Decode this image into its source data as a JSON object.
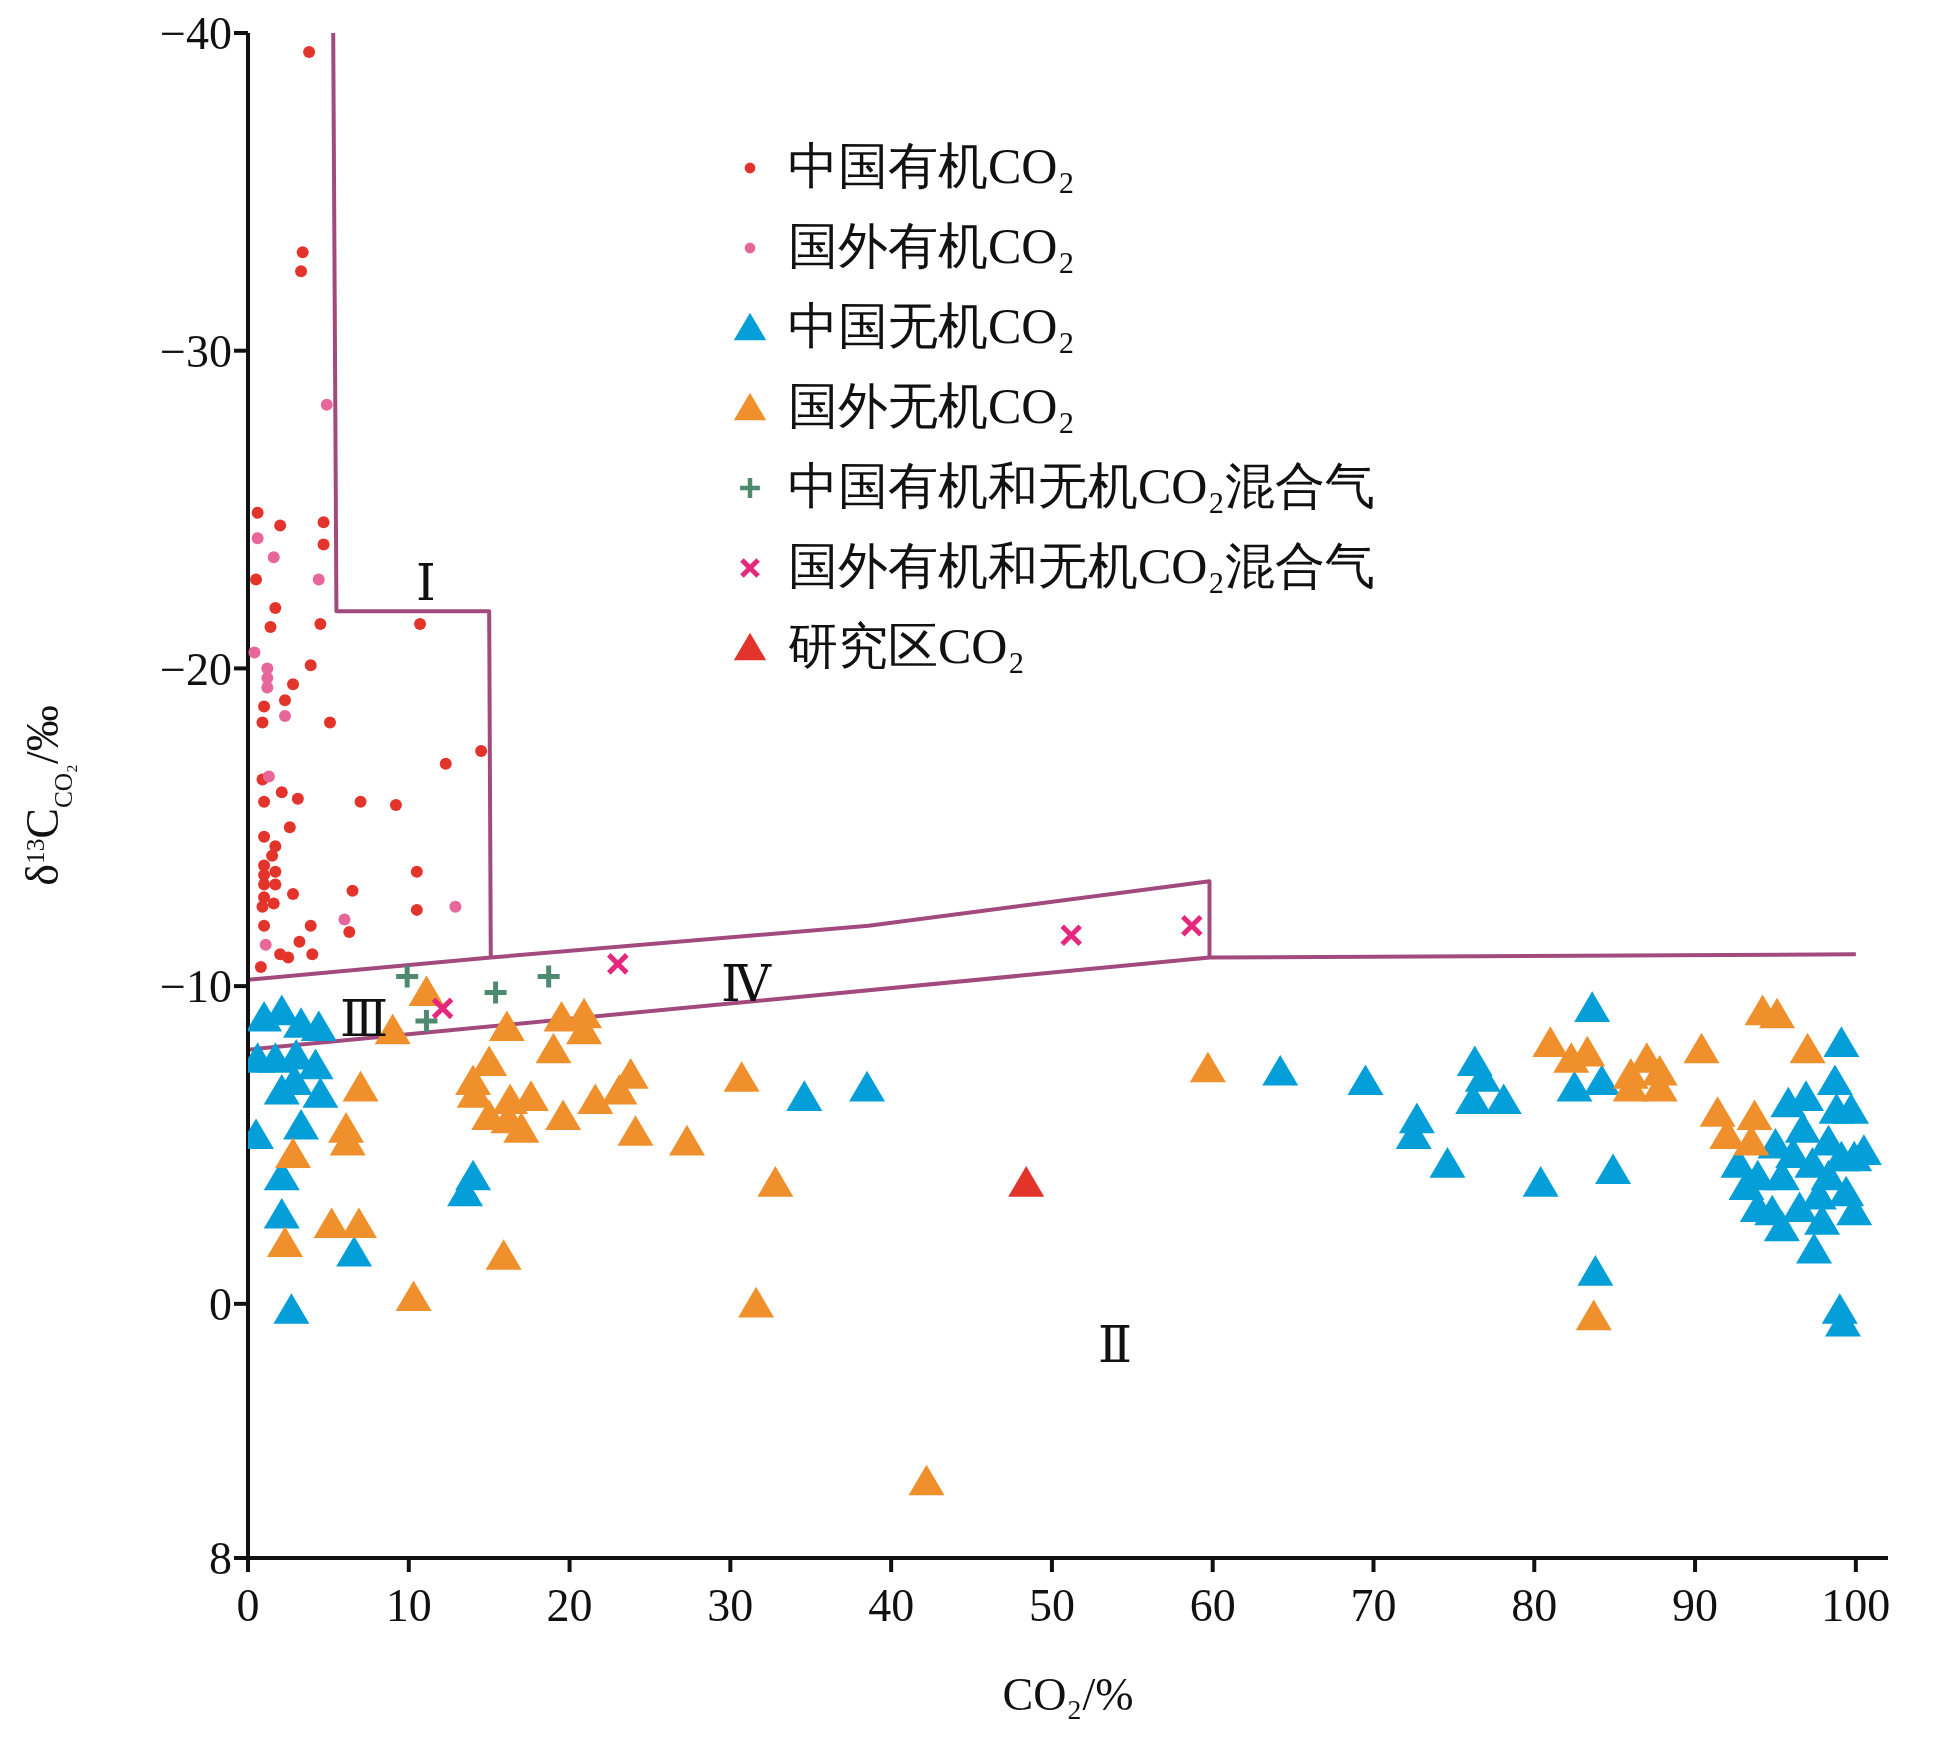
{
  "chart_data": {
    "type": "scatter",
    "xlabel": "CO₂/%",
    "ylabel": "δ$^{13}$C$_{CO₂}$/‰",
    "xlim": [
      0,
      102
    ],
    "xticks": [
      0,
      10,
      20,
      30,
      40,
      50,
      60,
      70,
      80,
      90,
      100
    ],
    "ylim": [
      8,
      -40
    ],
    "yticks": [
      -40,
      -30,
      -20,
      -10,
      0,
      8
    ],
    "grid": false,
    "legend": "top",
    "series": [
      {
        "name": "中国有机CO₂",
        "color": "#e3342c",
        "marker": "circle",
        "x": [
          3.8,
          3.4,
          3.3,
          0.6,
          2,
          4.7,
          4.7,
          0.5,
          1.7,
          1.4,
          4.5,
          10.7,
          3.9,
          2.8,
          2.3,
          1.1,
          1,
          0.9,
          5.1,
          14.5,
          12.3,
          0.9,
          2.1,
          3.1,
          1,
          7,
          9.2,
          2.6,
          1,
          1.7,
          1.5,
          1,
          1.7,
          10.5,
          1,
          1,
          1.7,
          1,
          2.8,
          6.5,
          10.5,
          1.6,
          0.9,
          3.9,
          6.3,
          1,
          3.2,
          4,
          2.5,
          0.8,
          2
        ],
        "values": [
          -39.4,
          -33.1,
          -32.5,
          -24.9,
          -24.5,
          -24.6,
          -23.9,
          -22.8,
          -21.9,
          -21.3,
          -21.4,
          -21.4,
          -20.1,
          -19.5,
          -19,
          null,
          -18.8,
          -18.3,
          -18.3,
          -17.4,
          -17,
          -16.5,
          -16.1,
          -15.9,
          -15.8,
          -15.8,
          -15.7,
          -15,
          -14.7,
          -14.4,
          -14.1,
          -13.8,
          -13.6,
          -13.6,
          -13.5,
          -13.2,
          -13.2,
          -12.8,
          -12.9,
          -13,
          -12.4,
          -12.6,
          -12.5,
          -11.9,
          -11.7,
          -11.9,
          -11.4,
          -11,
          -10.9,
          -10.6,
          -11
        ]
      },
      {
        "name": "国外有机CO₂",
        "color": "#e8679a",
        "marker": "circle",
        "x": [
          4.9,
          0.6,
          1.6,
          4.4,
          0.4,
          1.2,
          1.2,
          1.2,
          2.3,
          1.3,
          6,
          12.9,
          1.1
        ],
        "values": [
          -28.3,
          -24.1,
          -23.5,
          -22.8,
          -20.5,
          -20,
          -19.7,
          -19.4,
          -18.5,
          -16.6,
          -12.1,
          -12.5,
          -11.3
        ]
      },
      {
        "name": "中国无机CO₂",
        "color": "#049fd9",
        "marker": "triangle",
        "x": [
          1,
          2.1,
          3.3,
          4.4,
          0.6,
          1.7,
          3,
          4.2,
          2.9,
          2.1,
          4.5,
          3.3,
          0.5,
          2.1,
          2.1,
          14,
          13.5,
          6.6,
          2.7,
          34.6,
          38.5,
          64.2,
          69.5,
          72.7,
          72.5,
          74.6,
          76.3,
          76.8,
          76.2,
          78.1,
          80.4,
          83.6,
          82.5,
          84.2,
          84.9,
          83.8,
          99.1,
          98.7,
          92.7,
          93.9,
          94.8,
          95.4,
          96.1,
          95.8,
          96.7,
          97.3,
          97.7,
          97.4,
          98.3,
          98.8,
          99.1,
          99.4,
          99.7,
          99.9,
          99.9,
          100.5,
          99,
          99.2,
          96.5,
          95.4,
          93.9,
          97.9,
          98.3,
          96.9,
          95,
          93.2
        ],
        "values": [
          -9,
          -9.2,
          -8.8,
          -8.7,
          -7.7,
          -7.7,
          -7.8,
          -7.5,
          -7,
          -6.7,
          -6.6,
          -5.6,
          -5.3,
          -4,
          -2.8,
          -4,
          -3.5,
          -1.6,
          0.2,
          -6.5,
          -6.8,
          -7.3,
          -7,
          -5.8,
          -5.3,
          -4.4,
          -7.6,
          -7.1,
          -6.4,
          -6.4,
          -3.8,
          -9.3,
          -6.8,
          -7,
          -4.2,
          -1,
          -8.2,
          -7,
          -4.4,
          -4,
          -2.9,
          -4,
          -4.7,
          -6.3,
          -5.5,
          -4.4,
          -3.4,
          -1.7,
          -5.1,
          -6.1,
          -4.6,
          -3.5,
          -6.1,
          -4.6,
          -2.9,
          -4.8,
          0.2,
          0.6,
          -3,
          -2.4,
          -3,
          -2.6,
          -4,
          -6.5,
          -5,
          -3.7
        ]
      },
      {
        "name": "国外无机CO₂",
        "color": "#f0902c",
        "marker": "triangle",
        "x": [
          9,
          11.1,
          7,
          6.1,
          6.2,
          2.8,
          2.3,
          5.2,
          6.9,
          10.3,
          14,
          14.1,
          15,
          16.1,
          15,
          16.2,
          17,
          17.6,
          16.3,
          19,
          19.5,
          20.9,
          20.9,
          19.6,
          21.6,
          23.1,
          23.8,
          24.1,
          27.3,
          30.7,
          32.8,
          15.9,
          31.6,
          42.2,
          59.7,
          81,
          82.3,
          83.3,
          86,
          86,
          87,
          87.8,
          87.8,
          90.4,
          91.4,
          92,
          93.7,
          93.5,
          94.2,
          95.1,
          97,
          83.7
        ],
        "values": [
          -8.6,
          -9.8,
          -6.8,
          -5.5,
          -5.1,
          -4.7,
          -1.9,
          -2.5,
          -2.5,
          -0.2,
          -7,
          -6.6,
          -7.6,
          -8.7,
          -5.9,
          -5.8,
          -5.5,
          -6.5,
          -6.4,
          -8,
          -9,
          -9.1,
          -8.6,
          -5.9,
          -6.4,
          -6.7,
          -7.2,
          -5.4,
          -5.1,
          -7.1,
          -3.8,
          -1.5,
          0,
          5.6,
          -7.4,
          -8.2,
          -7.7,
          -7.9,
          -7.2,
          -6.8,
          -7.7,
          -7.3,
          -6.8,
          -8,
          -6,
          -5.3,
          -5.9,
          -5.1,
          -9.2,
          -9.1,
          -8,
          0.4
        ]
      },
      {
        "name": "中国有机和无机CO₂混合气",
        "color": "#4e8a6f",
        "marker": "cross",
        "x": [
          9.9,
          11.1,
          15.4,
          18.7
        ],
        "values": [
          -10.3,
          -8.9,
          -9.8,
          -10.3
        ]
      },
      {
        "name": "国外有机和无机CO₂混合气",
        "color": "#e5287d",
        "x": [
          12.1,
          23,
          51.2,
          58.7
        ],
        "values": [
          -9.3,
          -10.7,
          -11.6,
          -11.9
        ]
      },
      {
        "name": "研究区CO₂",
        "color": "#e3342c",
        "marker": "triangle",
        "x": [
          48.4
        ],
        "values": [
          -3.8
        ]
      },
      {
        "type": "line",
        "color": "#a24a7e",
        "marker": "none",
        "x": [
          5.3,
          5.5,
          15,
          15.1
        ],
        "values": [
          -40,
          -21.8,
          -21.8,
          -10.9
        ]
      },
      {
        "type": "line",
        "color": "#a24a7e",
        "marker": "none",
        "x": [
          0,
          15.1,
          38.6,
          59.8,
          59.8
        ],
        "values": [
          -10.2,
          -10.9,
          -11.9,
          -13.3,
          -10.9
        ]
      },
      {
        "type": "line",
        "color": "#a24a7e",
        "marker": "none",
        "x": [
          0,
          59.8,
          100
        ],
        "values": [
          -8,
          -10.9,
          -11
        ]
      }
    ],
    "annotations": [
      "Ⅰ",
      "Ⅱ",
      "Ⅲ",
      "Ⅳ"
    ]
  }
}
